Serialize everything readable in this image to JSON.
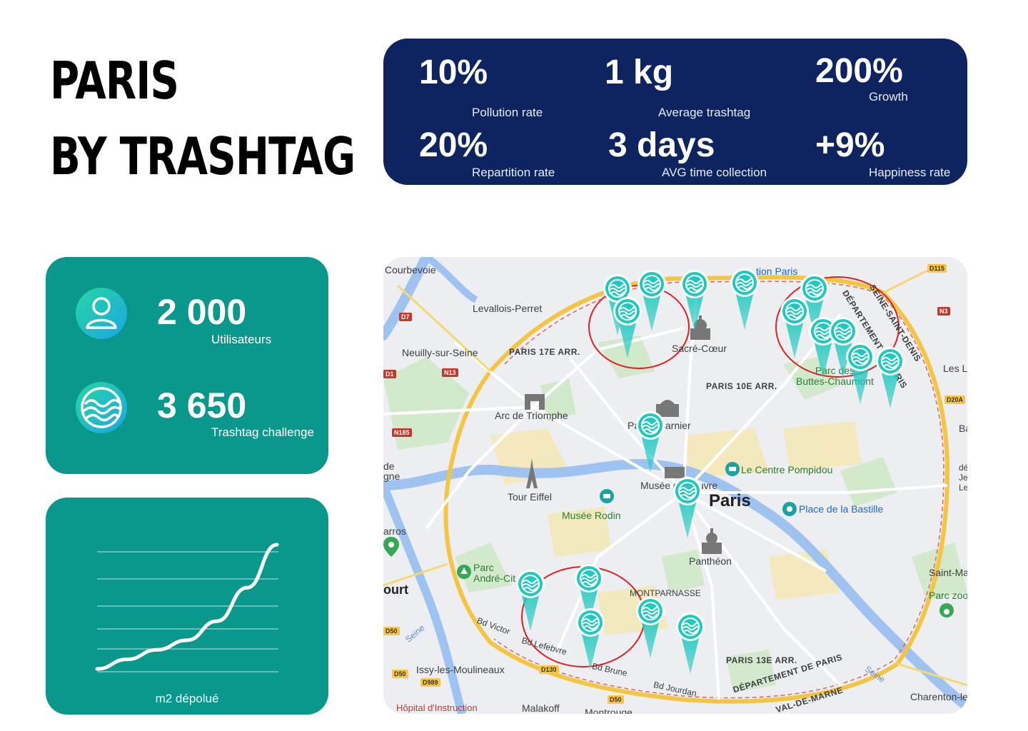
{
  "title": {
    "line1": "PARIS",
    "line2": "BY TRASHTAG"
  },
  "stats": [
    {
      "value": "10%",
      "label": "Pollution rate"
    },
    {
      "value": "1 kg",
      "label": "Average trashtag"
    },
    {
      "value": "200%",
      "label": "Growth"
    },
    {
      "value": "20%",
      "label": "Repartition rate"
    },
    {
      "value": "3 days",
      "label": "AVG time collection"
    },
    {
      "value": "+9%",
      "label": "Happiness rate"
    }
  ],
  "users_card": {
    "users": {
      "value": "2 000",
      "label": "Utilisateurs",
      "icon": "user-icon"
    },
    "challenges": {
      "value": "3 650",
      "label": "Trashtag challenge",
      "icon": "trashtag-wave-icon"
    }
  },
  "chart_card": {
    "label": "m2 dépolué",
    "chart_data": {
      "type": "line",
      "xlabel": "m2 dépolué",
      "ylabel": "",
      "grid": true,
      "series": [
        {
          "values": [
            0,
            20,
            40,
            60,
            100,
            170,
            260
          ]
        }
      ]
    }
  },
  "map": {
    "labels": {
      "courbevoie": "Courbevoie",
      "levallois": "Levallois-Perret",
      "neuilly": "Neuilly-sur-Seine",
      "paris17": "PARIS 17E ARR.",
      "sacre_coeur": "Sacré-Cœur",
      "paris10": "PARIS 10E ARR.",
      "parc_buttes": "Parc des\nButtes-Chaumont",
      "arc": "Arc de Triomphe",
      "palais": "Palais Garnier",
      "pompidou": "Le Centre Pompidou",
      "louvre": "Musée du Louvre",
      "paris": "Paris",
      "bastille": "Place de la Bastille",
      "eiffel": "Tour Eiffel",
      "rodin": "Musée Rodin",
      "pantheon": "Panthéon",
      "andre": "Parc\nAndré-Cit",
      "montparnasse": "MONTPARNASSE",
      "paris13": "PARIS 13E ARR.",
      "issy": "Issy-les-Moulineaux",
      "malakoff": "Malakoff",
      "montrouge": "Montrouge",
      "charenton": "Charenton-le",
      "dept_paris": "DÉPARTEMENT DE PARIS",
      "val_marne": "VAL-DE-MARNE",
      "seine_st_denis": "SEINE-SAINT-DENIS",
      "dept_paris_ne": "DÉPARTEMENT DE PARIS",
      "les_lilas": "Les L",
      "hopital": "Hôpital d'Instruction",
      "saint_ma": "Saint-Ma",
      "parc_zoo": "Parc zoo",
      "bd_victor": "Bd Victor",
      "bd_lefebvre": "Bd Lefebvre",
      "bd_brune": "Bd Brune",
      "bd_jourdan": "Bd Jourdan",
      "ourt": "ourt",
      "arros": "arros",
      "de_gne": "de\ngne",
      "ba": "Ba",
      "dep_jea": "dép\nJea\nLes",
      "seine1": "Seine",
      "seine2": "Seine",
      "station_paris": "tion Paris"
    },
    "roads": [
      "D7",
      "N13",
      "N185",
      "D115",
      "N3",
      "D20A",
      "D50",
      "D130",
      "D989",
      "D50",
      "D50",
      "D1"
    ],
    "pin_color": "#1fc8c0",
    "zone_color": "#e02020"
  }
}
